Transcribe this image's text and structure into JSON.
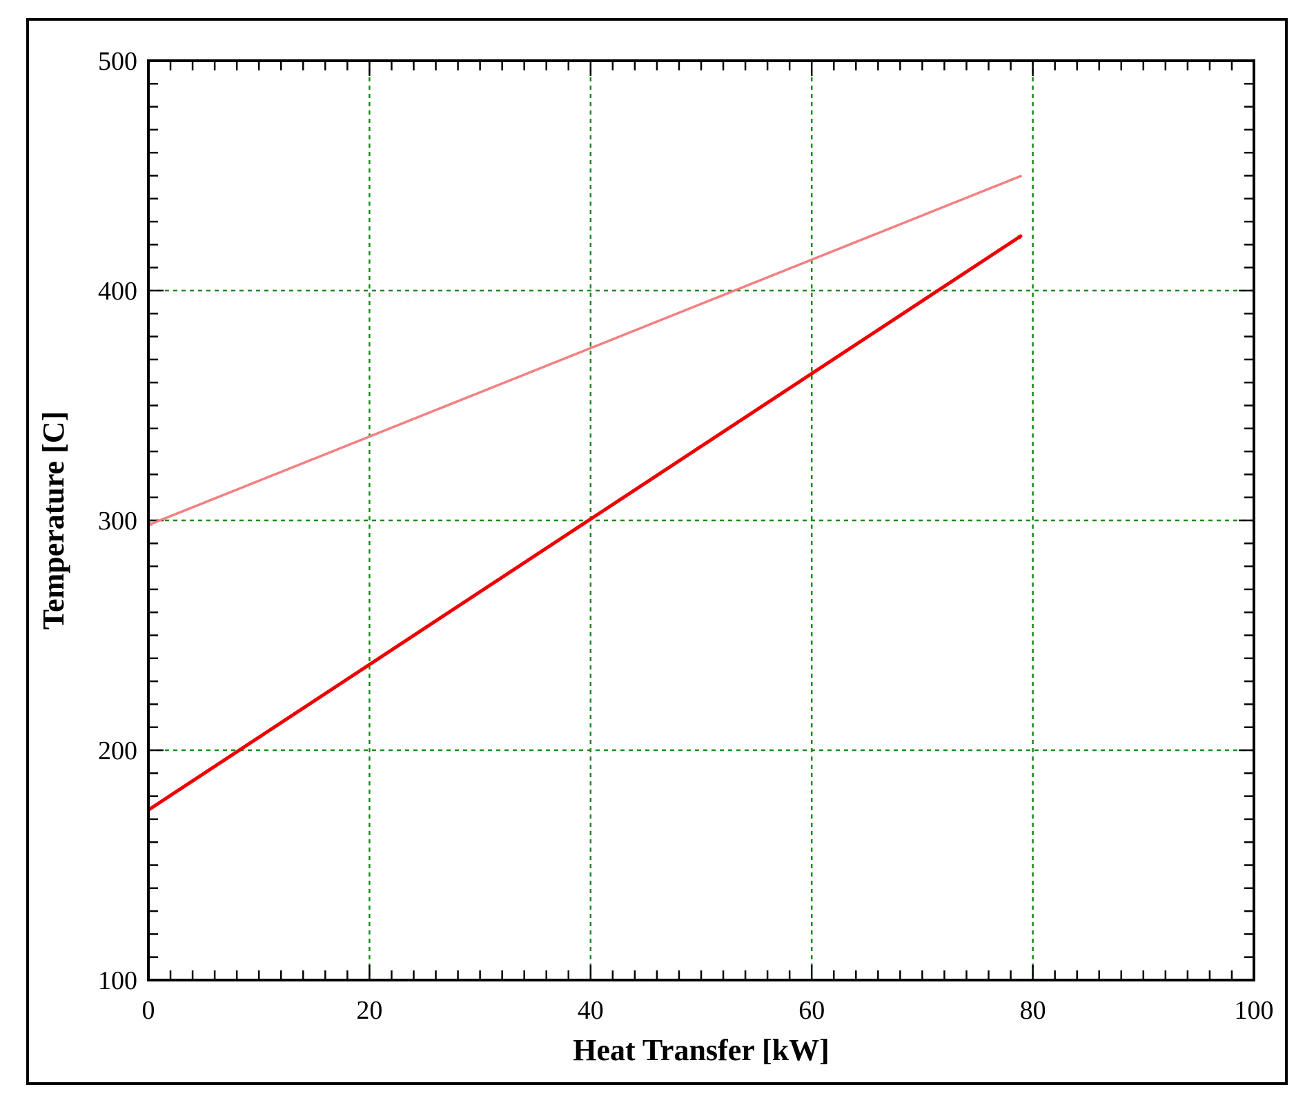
{
  "chart_data": {
    "type": "line",
    "title": "",
    "xlabel": "Heat Transfer [kW]",
    "ylabel": "Temperature [C]",
    "xlim": [
      0,
      100
    ],
    "ylim": [
      100,
      500
    ],
    "x_ticks": [
      "0",
      "20",
      "40",
      "60",
      "80",
      "100"
    ],
    "y_ticks": [
      "100",
      "200",
      "300",
      "400",
      "500"
    ],
    "grid": true,
    "grid_color": "#1a8a1a",
    "series": [
      {
        "color": "#f28080",
        "direction": "toward-start",
        "x": [
          0,
          79
        ],
        "y": [
          298,
          450
        ]
      },
      {
        "color": "#ee0000",
        "direction": "toward-end",
        "x": [
          0,
          79
        ],
        "y": [
          174,
          424
        ]
      }
    ]
  }
}
